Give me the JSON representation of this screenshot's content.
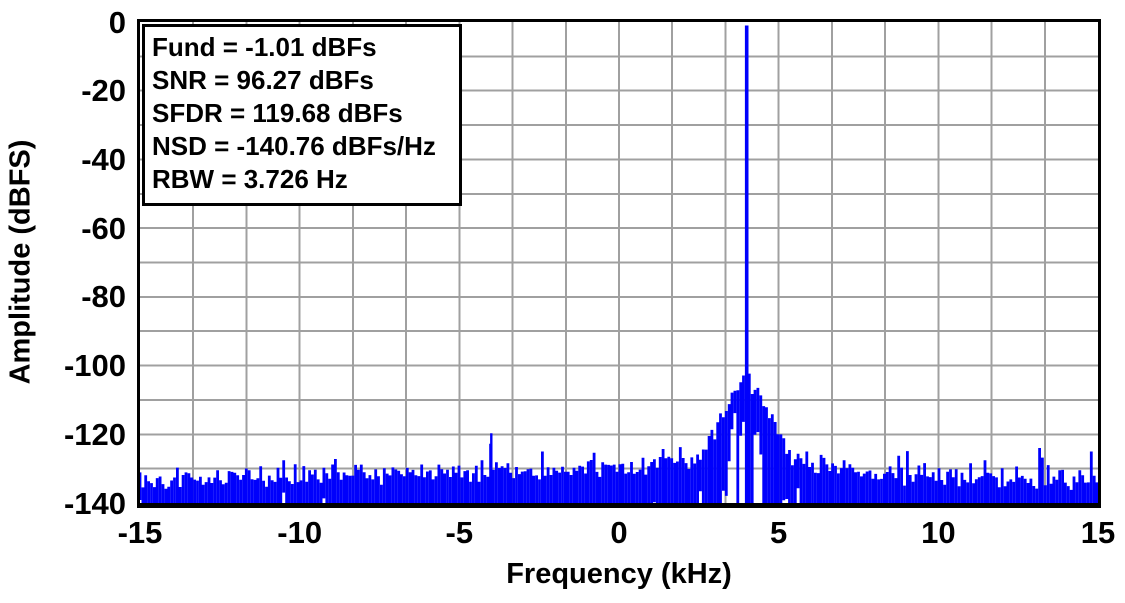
{
  "figure": {
    "x_axis_title": "Frequency (kHz)",
    "y_axis_title": "Amplitude (dBFS)"
  },
  "annotation_box": {
    "lines": [
      "Fund = -1.01 dBFs",
      "SNR = 96.27 dBFs",
      "SFDR = 119.68 dBFs",
      "NSD = -140.76 dBFs/Hz",
      "RBW = 3.726 Hz"
    ]
  },
  "chart_data": {
    "type": "line",
    "title": "",
    "xlabel": "Frequency (kHz)",
    "ylabel": "Amplitude (dBFS)",
    "xlim": [
      -15,
      15
    ],
    "ylim": [
      -140,
      0
    ],
    "x_ticks": [
      -15,
      -10,
      -5,
      0,
      5,
      10,
      15
    ],
    "y_ticks": [
      0,
      -20,
      -40,
      -60,
      -80,
      -100,
      -120,
      -140
    ],
    "x_minor_step_khz": 1.6666667,
    "y_minor_step_db": 10,
    "grid": "on",
    "grid_color": "#a0a0a0",
    "series_color": "#0000fc",
    "metrics": {
      "fund_dbfs": -1.01,
      "snr_dbfs": 96.27,
      "sfdr_dbfs": 119.68,
      "nsd_dbfs_per_hz": -140.76,
      "rbw_hz": 3.726
    },
    "features": {
      "fundamental": {
        "freq_khz": 4.0,
        "amplitude_dbfs": -1.01
      },
      "spur": {
        "freq_khz": -4.0,
        "amplitude_dbfs": -119.7
      },
      "skirt": {
        "center_khz": 4.0,
        "top_dbfs": -100,
        "slope_db_per_khz": 19,
        "half_width_khz": 2.2
      },
      "noise_floor": {
        "edge_dbfs": -133.5,
        "center_bow_db": 3.0,
        "carrier_hump_db": 4.5,
        "carrier_hump_sigma_khz": 2.8,
        "jitter_db": 3.6
      },
      "bin_step_khz": 0.09,
      "seed": 13
    }
  }
}
